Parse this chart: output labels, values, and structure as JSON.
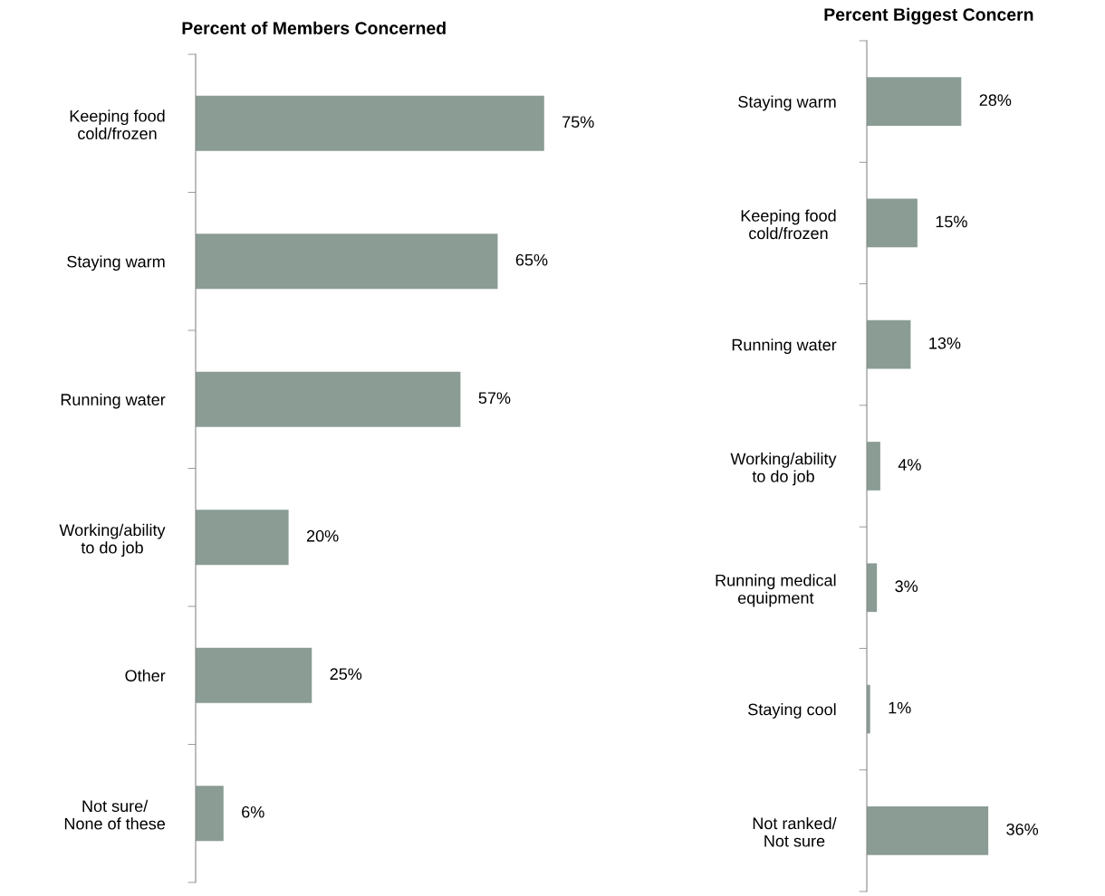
{
  "chart_data": [
    {
      "type": "bar",
      "orientation": "horizontal",
      "title": "Percent of Members Concerned",
      "categories": [
        "Keeping food\ncold/frozen",
        "Staying warm",
        "Running water",
        "Working/ability\nto do job",
        "Other",
        "Not sure/\nNone of these"
      ],
      "values": [
        75,
        65,
        57,
        20,
        25,
        6
      ],
      "value_labels": [
        "75%",
        "65%",
        "57%",
        "20%",
        "25%",
        "6%"
      ],
      "color": "#8a9c94",
      "tick_labels": "y"
    },
    {
      "type": "bar",
      "orientation": "horizontal",
      "title": "Percent Biggest Concern",
      "categories": [
        "Staying warm",
        "Keeping food\ncold/frozen",
        "Running water",
        "Working/ability\nto do job",
        "Running medical\nequipment",
        "Staying cool",
        "Not ranked/\nNot sure"
      ],
      "values": [
        28,
        15,
        13,
        4,
        3,
        1,
        36
      ],
      "value_labels": [
        "28%",
        "15%",
        "13%",
        "4%",
        "3%",
        "1%",
        "36%"
      ],
      "color": "#8a9c94",
      "tick_labels": "y"
    }
  ]
}
